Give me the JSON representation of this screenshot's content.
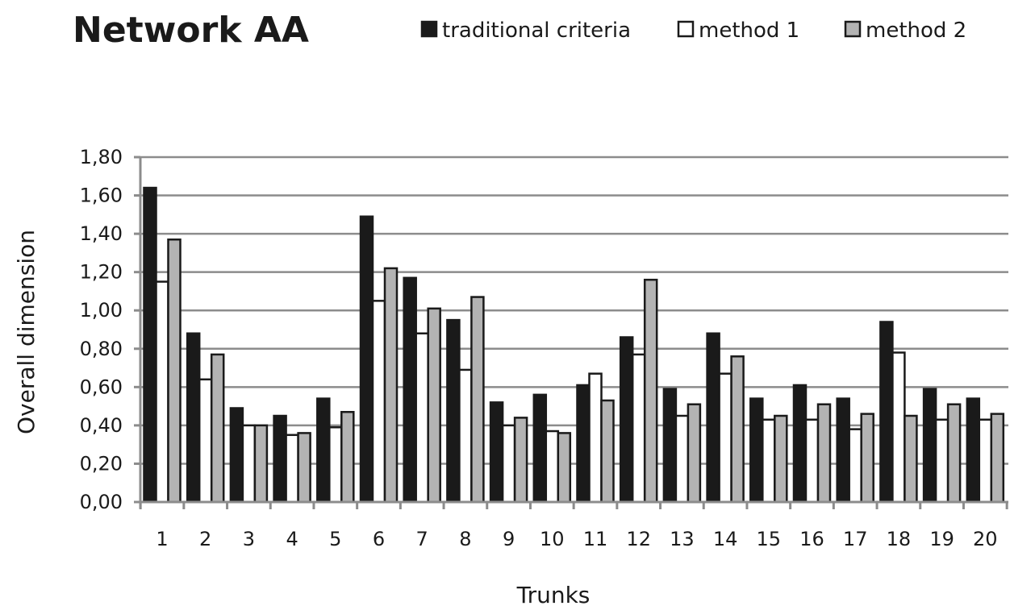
{
  "chart_data": {
    "type": "bar",
    "title": "Network AA",
    "xlabel": "Trunks",
    "ylabel": "Overall dimension",
    "ylim": [
      0,
      1.8
    ],
    "ytick_labels": [
      "0,00",
      "0,20",
      "0,40",
      "0,60",
      "0,80",
      "1,00",
      "1,20",
      "1,40",
      "1,60",
      "1,80"
    ],
    "ytick_values": [
      0,
      0.2,
      0.4,
      0.6,
      0.8,
      1.0,
      1.2,
      1.4,
      1.6,
      1.8
    ],
    "categories": [
      "1",
      "2",
      "3",
      "4",
      "5",
      "6",
      "7",
      "8",
      "9",
      "10",
      "11",
      "12",
      "13",
      "14",
      "15",
      "16",
      "17",
      "18",
      "19",
      "20"
    ],
    "grid": true,
    "legend_position": "top-right",
    "series": [
      {
        "name": "traditional criteria",
        "color": "#1a1a1a",
        "values": [
          1.64,
          0.88,
          0.49,
          0.45,
          0.54,
          1.49,
          1.17,
          0.95,
          0.52,
          0.56,
          0.61,
          0.86,
          0.59,
          0.88,
          0.54,
          0.61,
          0.54,
          0.94,
          0.59,
          0.54
        ]
      },
      {
        "name": "method 1",
        "color": "#ffffff",
        "values": [
          1.15,
          0.64,
          0.4,
          0.35,
          0.39,
          1.05,
          0.88,
          0.69,
          0.4,
          0.37,
          0.67,
          0.77,
          0.45,
          0.67,
          0.43,
          0.43,
          0.38,
          0.78,
          0.43,
          0.43
        ]
      },
      {
        "name": "method 2",
        "color": "#b3b3b3",
        "values": [
          1.37,
          0.77,
          0.4,
          0.36,
          0.47,
          1.22,
          1.01,
          1.07,
          0.44,
          0.36,
          0.53,
          1.16,
          0.51,
          0.76,
          0.45,
          0.51,
          0.46,
          0.45,
          0.51,
          0.46
        ]
      }
    ]
  }
}
